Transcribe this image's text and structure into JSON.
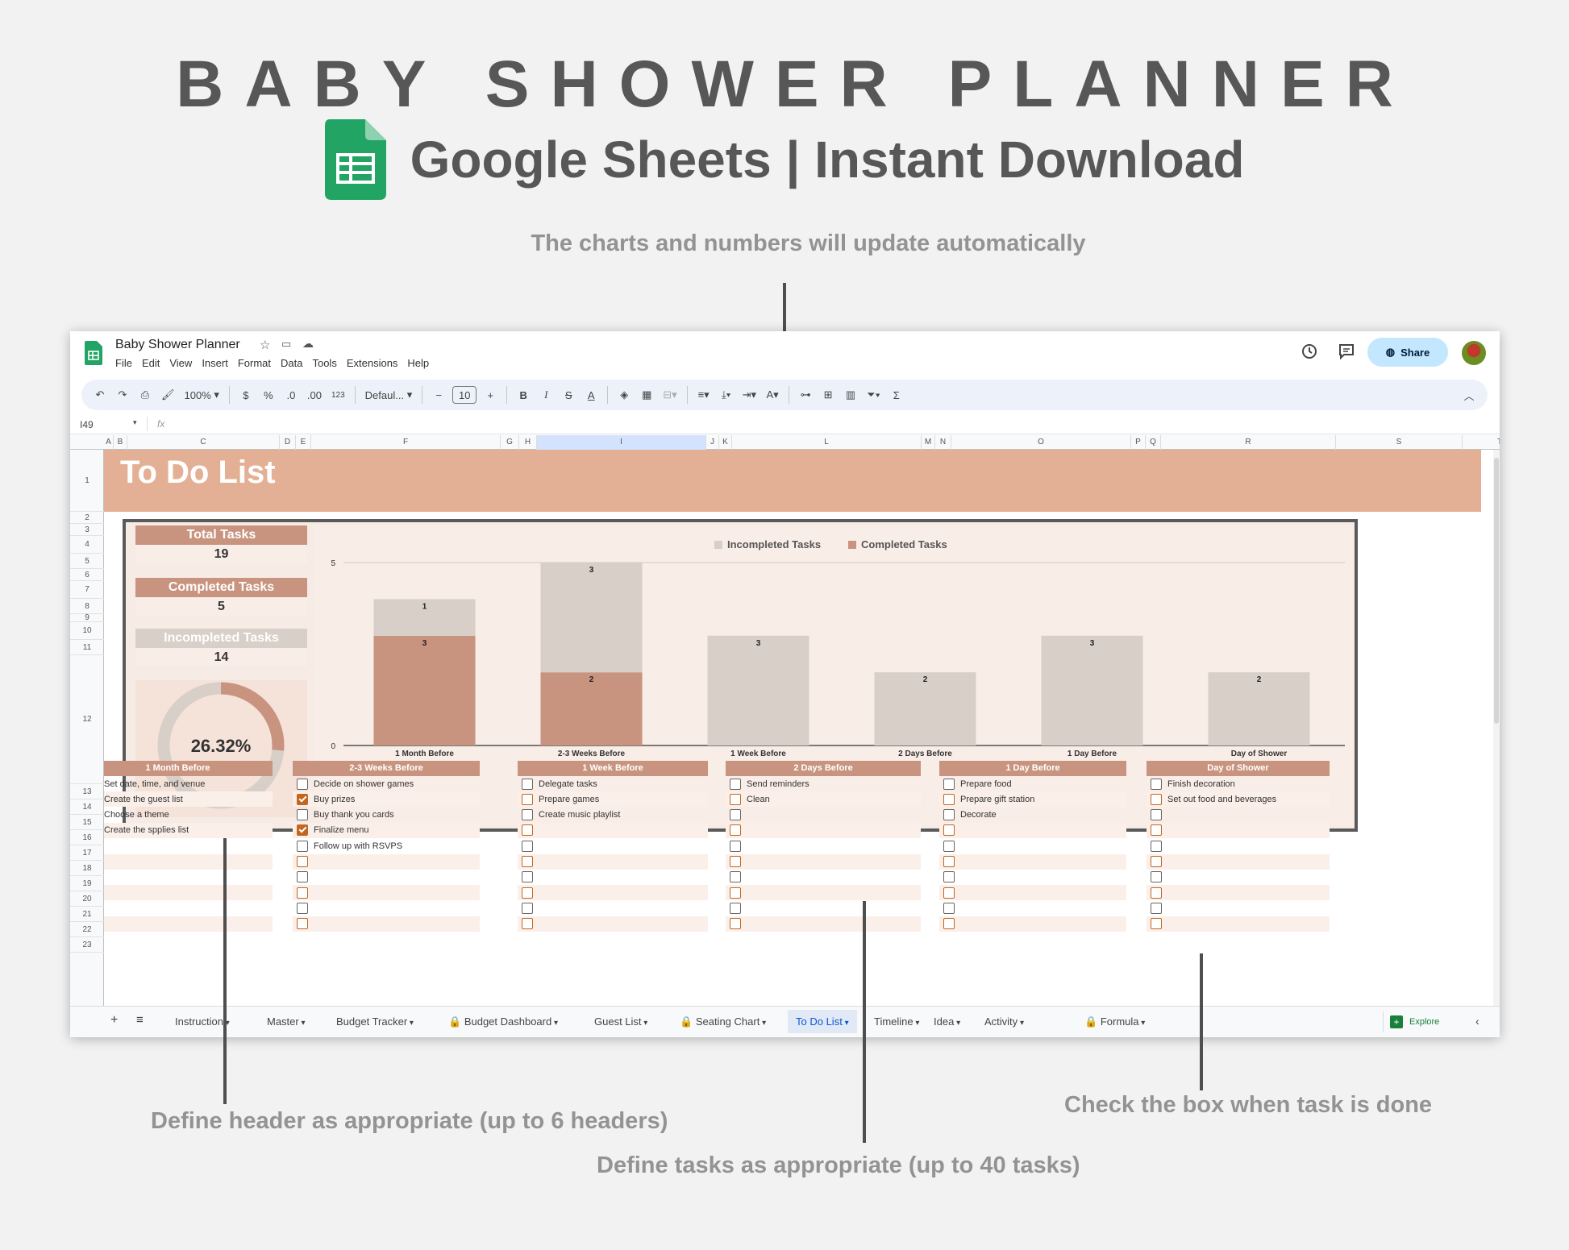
{
  "hero": {
    "title": "BABY SHOWER PLANNER",
    "subtitle": "Google Sheets | Instant Download",
    "note_top": "The charts and numbers will update automatically",
    "note_headers": "Define header as appropriate (up to 6 headers)",
    "note_tasks": "Define tasks as appropriate (up to 40 tasks)",
    "note_check": "Check the box when task is done"
  },
  "app": {
    "doc_title": "Baby Shower Planner",
    "menu": [
      "File",
      "Edit",
      "View",
      "Insert",
      "Format",
      "Data",
      "Tools",
      "Extensions",
      "Help"
    ],
    "share_label": "Share",
    "zoom": "100%",
    "currency": "$",
    "percent": "%",
    "dec_less": ".0",
    "dec_more": ".00",
    "num_format": "123",
    "font": "Defaul...",
    "font_size": "10",
    "cell_ref": "I49",
    "fx": "fx",
    "explore_label": "Explore"
  },
  "columns": [
    "A",
    "B",
    "C",
    "D",
    "E",
    "F",
    "G",
    "H",
    "I",
    "J",
    "K",
    "L",
    "M",
    "N",
    "O",
    "P",
    "Q",
    "R",
    "S",
    "T"
  ],
  "rows": [
    "1",
    "2",
    "3",
    "4",
    "5",
    "6",
    "7",
    "8",
    "9",
    "10",
    "11",
    "12",
    "13",
    "14",
    "15",
    "16",
    "17",
    "18",
    "19",
    "20",
    "21",
    "22",
    "23"
  ],
  "sheet": {
    "title": "To Do List",
    "total_label": "Total Tasks",
    "total_value": "19",
    "completed_label": "Completed Tasks",
    "completed_value": "5",
    "incompleted_label": "Incompleted Tasks",
    "incompleted_value": "14",
    "percent_label": "26.32%",
    "percent": 0.2632
  },
  "chart_data": {
    "type": "bar",
    "stacked": true,
    "categories": [
      "1 Month Before",
      "2-3 Weeks Before",
      "1 Week Before",
      "2 Days Before",
      "1 Day Before",
      "Day of Shower"
    ],
    "series": [
      {
        "name": "Completed Tasks",
        "values": [
          3,
          2,
          0,
          0,
          0,
          0
        ],
        "color": "#c8947f"
      },
      {
        "name": "Incompleted Tasks",
        "values": [
          1,
          3,
          3,
          2,
          3,
          2
        ],
        "color": "#d8cfc8"
      }
    ],
    "ylim": [
      0,
      5
    ],
    "yticks": [
      "0",
      "5"
    ],
    "legend": "top",
    "legend_order": [
      "Incompleted Tasks",
      "Completed Tasks"
    ]
  },
  "task_groups": [
    {
      "header": "1 Month Before",
      "tasks": [
        {
          "text": "Set date, time, and venue",
          "done": true
        },
        {
          "text": "Create the guest list",
          "done": true
        },
        {
          "text": "Choose a theme",
          "done": true
        },
        {
          "text": "Create the spplies list",
          "done": false
        }
      ]
    },
    {
      "header": "2-3 Weeks Before",
      "tasks": [
        {
          "text": "Decide on shower games",
          "done": false
        },
        {
          "text": "Buy prizes",
          "done": true
        },
        {
          "text": "Buy thank you cards",
          "done": false
        },
        {
          "text": "Finalize menu",
          "done": true
        },
        {
          "text": "Follow up with RSVPS",
          "done": false
        }
      ]
    },
    {
      "header": "1 Week Before",
      "tasks": [
        {
          "text": "Delegate tasks",
          "done": false
        },
        {
          "text": "Prepare games",
          "done": false
        },
        {
          "text": "Create music playlist",
          "done": false
        }
      ]
    },
    {
      "header": "2 Days Before",
      "tasks": [
        {
          "text": "Send reminders",
          "done": false
        },
        {
          "text": "Clean",
          "done": false
        }
      ]
    },
    {
      "header": "1 Day Before",
      "tasks": [
        {
          "text": "Prepare food",
          "done": false
        },
        {
          "text": "Prepare gift station",
          "done": false
        },
        {
          "text": "Decorate",
          "done": false
        }
      ]
    },
    {
      "header": "Day of Shower",
      "tasks": [
        {
          "text": "Finish decoration",
          "done": false
        },
        {
          "text": "Set out food and beverages",
          "done": false
        }
      ]
    }
  ],
  "tabs": [
    "Instruction",
    "Master",
    "Budget Tracker",
    "Budget Dashboard",
    "Guest List",
    "Seating Chart",
    "To Do List",
    "Timeline",
    "Idea",
    "Activity",
    "Formula"
  ],
  "active_tab": "To Do List",
  "locked_tabs": [
    "Budget Dashboard",
    "Seating Chart",
    "Formula"
  ],
  "colors": {
    "accent": "#c8947f",
    "banner": "#e3b095",
    "incomplete": "#d8cfc8",
    "checkbox": "#c4661f"
  }
}
